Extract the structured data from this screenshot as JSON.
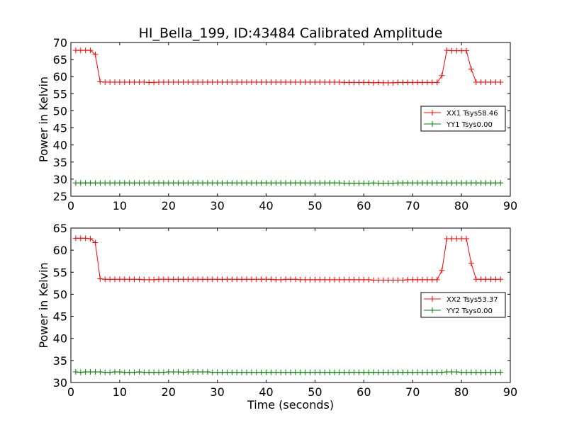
{
  "title": "HI_Bella_199, ID:43484 Calibrated Amplitude",
  "xlabel": "Time (seconds)",
  "colors": {
    "red_series": "#ff0000",
    "green_series": "#008000"
  },
  "chart_data": [
    {
      "type": "line",
      "title": "HI_Bella_199, ID:43484 Calibrated Amplitude",
      "xlabel": "",
      "ylabel": "Power in Kelvin",
      "xlim": [
        0,
        90
      ],
      "ylim": [
        25,
        70
      ],
      "xticks": [
        0,
        10,
        20,
        30,
        40,
        50,
        60,
        70,
        80,
        90
      ],
      "yticks": [
        25,
        30,
        35,
        40,
        45,
        50,
        55,
        60,
        65,
        70
      ],
      "grid": false,
      "legend_position": "right",
      "x": [
        1,
        2,
        3,
        4,
        5,
        6,
        7,
        8,
        9,
        10,
        11,
        12,
        13,
        14,
        15,
        16,
        17,
        18,
        19,
        20,
        21,
        22,
        23,
        24,
        25,
        26,
        27,
        28,
        29,
        30,
        31,
        32,
        33,
        34,
        35,
        36,
        37,
        38,
        39,
        40,
        41,
        42,
        43,
        44,
        45,
        46,
        47,
        48,
        49,
        50,
        51,
        52,
        53,
        54,
        55,
        56,
        57,
        58,
        59,
        60,
        61,
        62,
        63,
        64,
        65,
        66,
        67,
        68,
        69,
        70,
        71,
        72,
        73,
        74,
        75,
        76,
        77,
        78,
        79,
        80,
        81,
        82,
        83,
        84,
        85,
        86,
        87,
        88
      ],
      "series": [
        {
          "name": "XX1 Tsys58.46",
          "color": "#ff0000",
          "values": [
            67.7,
            67.7,
            67.7,
            67.7,
            66.5,
            58.5,
            58.4,
            58.4,
            58.4,
            58.4,
            58.4,
            58.4,
            58.4,
            58.4,
            58.4,
            58.3,
            58.3,
            58.4,
            58.4,
            58.4,
            58.4,
            58.4,
            58.4,
            58.4,
            58.4,
            58.4,
            58.4,
            58.4,
            58.4,
            58.4,
            58.4,
            58.4,
            58.4,
            58.4,
            58.4,
            58.4,
            58.4,
            58.4,
            58.4,
            58.4,
            58.4,
            58.4,
            58.4,
            58.4,
            58.4,
            58.4,
            58.4,
            58.4,
            58.4,
            58.4,
            58.4,
            58.4,
            58.4,
            58.4,
            58.4,
            58.3,
            58.3,
            58.3,
            58.3,
            58.3,
            58.3,
            58.2,
            58.3,
            58.2,
            58.2,
            58.2,
            58.3,
            58.3,
            58.3,
            58.3,
            58.3,
            58.3,
            58.3,
            58.3,
            58.3,
            60.3,
            67.7,
            67.6,
            67.6,
            67.6,
            67.6,
            62.2,
            58.4,
            58.4,
            58.4,
            58.4,
            58.4,
            58.4
          ]
        },
        {
          "name": "YY1 Tsys0.00",
          "color": "#008000",
          "values": [
            28.9,
            28.9,
            28.9,
            28.9,
            28.9,
            28.9,
            28.9,
            28.9,
            28.9,
            28.9,
            28.9,
            28.9,
            28.9,
            28.9,
            28.9,
            28.9,
            28.9,
            28.9,
            28.9,
            28.9,
            28.9,
            28.9,
            28.9,
            28.9,
            28.9,
            28.9,
            28.9,
            28.9,
            28.9,
            28.9,
            28.9,
            28.9,
            28.9,
            28.9,
            28.9,
            28.9,
            28.9,
            28.9,
            28.9,
            28.9,
            28.9,
            28.9,
            28.9,
            28.9,
            28.9,
            28.9,
            28.9,
            28.9,
            28.9,
            28.9,
            28.9,
            28.9,
            28.9,
            28.9,
            28.9,
            28.8,
            28.8,
            28.8,
            28.8,
            28.8,
            28.8,
            28.9,
            28.8,
            28.8,
            28.8,
            28.8,
            28.9,
            28.9,
            28.9,
            28.9,
            28.9,
            28.9,
            28.9,
            28.9,
            28.9,
            28.9,
            28.9,
            28.9,
            28.9,
            28.9,
            28.9,
            28.9,
            28.9,
            28.9,
            28.9,
            28.9,
            28.9,
            28.9
          ]
        }
      ]
    },
    {
      "type": "line",
      "title": "",
      "xlabel": "Time (seconds)",
      "ylabel": "Power in Kelvin",
      "xlim": [
        0,
        90
      ],
      "ylim": [
        30,
        65
      ],
      "xticks": [
        0,
        10,
        20,
        30,
        40,
        50,
        60,
        70,
        80,
        90
      ],
      "yticks": [
        30,
        35,
        40,
        45,
        50,
        55,
        60,
        65
      ],
      "grid": false,
      "legend_position": "right",
      "x": [
        1,
        2,
        3,
        4,
        5,
        6,
        7,
        8,
        9,
        10,
        11,
        12,
        13,
        14,
        15,
        16,
        17,
        18,
        19,
        20,
        21,
        22,
        23,
        24,
        25,
        26,
        27,
        28,
        29,
        30,
        31,
        32,
        33,
        34,
        35,
        36,
        37,
        38,
        39,
        40,
        41,
        42,
        43,
        44,
        45,
        46,
        47,
        48,
        49,
        50,
        51,
        52,
        53,
        54,
        55,
        56,
        57,
        58,
        59,
        60,
        61,
        62,
        63,
        64,
        65,
        66,
        67,
        68,
        69,
        70,
        71,
        72,
        73,
        74,
        75,
        76,
        77,
        78,
        79,
        80,
        81,
        82,
        83,
        84,
        85,
        86,
        87,
        88
      ],
      "series": [
        {
          "name": "XX2 Tsys53.37",
          "color": "#ff0000",
          "values": [
            62.7,
            62.7,
            62.7,
            62.6,
            61.7,
            53.5,
            53.4,
            53.4,
            53.4,
            53.4,
            53.4,
            53.4,
            53.4,
            53.4,
            53.3,
            53.3,
            53.3,
            53.4,
            53.4,
            53.4,
            53.4,
            53.4,
            53.4,
            53.4,
            53.4,
            53.4,
            53.4,
            53.4,
            53.4,
            53.4,
            53.4,
            53.4,
            53.4,
            53.4,
            53.4,
            53.4,
            53.4,
            53.4,
            53.4,
            53.4,
            53.4,
            53.3,
            53.3,
            53.4,
            53.4,
            53.4,
            53.3,
            53.3,
            53.3,
            53.3,
            53.3,
            53.3,
            53.3,
            53.3,
            53.3,
            53.3,
            53.3,
            53.3,
            53.3,
            53.3,
            53.3,
            53.2,
            53.2,
            53.2,
            53.2,
            53.2,
            53.2,
            53.2,
            53.3,
            53.3,
            53.3,
            53.3,
            53.3,
            53.3,
            53.3,
            55.4,
            62.6,
            62.6,
            62.6,
            62.6,
            62.6,
            57.0,
            53.4,
            53.4,
            53.4,
            53.4,
            53.4,
            53.4
          ]
        },
        {
          "name": "YY2 Tsys0.00",
          "color": "#008000",
          "values": [
            32.4,
            32.3,
            32.4,
            32.4,
            32.4,
            32.4,
            32.3,
            32.3,
            32.4,
            32.4,
            32.3,
            32.3,
            32.3,
            32.4,
            32.3,
            32.3,
            32.3,
            32.3,
            32.3,
            32.4,
            32.4,
            32.4,
            32.3,
            32.4,
            32.4,
            32.4,
            32.4,
            32.4,
            32.3,
            32.3,
            32.3,
            32.3,
            32.3,
            32.3,
            32.3,
            32.3,
            32.3,
            32.3,
            32.3,
            32.3,
            32.3,
            32.3,
            32.3,
            32.3,
            32.3,
            32.3,
            32.3,
            32.3,
            32.3,
            32.3,
            32.3,
            32.3,
            32.3,
            32.3,
            32.3,
            32.3,
            32.3,
            32.3,
            32.3,
            32.3,
            32.3,
            32.3,
            32.3,
            32.3,
            32.3,
            32.3,
            32.3,
            32.3,
            32.3,
            32.3,
            32.3,
            32.3,
            32.3,
            32.3,
            32.3,
            32.3,
            32.4,
            32.4,
            32.4,
            32.3,
            32.3,
            32.3,
            32.3,
            32.3,
            32.3,
            32.3,
            32.3,
            32.3
          ]
        }
      ]
    }
  ]
}
